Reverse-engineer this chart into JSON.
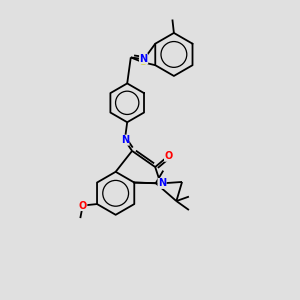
{
  "background_color": "#e0e0e0",
  "bond_color": "#000000",
  "S_color": "#cccc00",
  "N_color": "#0000ff",
  "O_color": "#ff0000",
  "figsize": [
    3.0,
    3.0
  ],
  "dpi": 100,
  "xlim": [
    0,
    10
  ],
  "ylim": [
    0,
    10
  ],
  "lw": 1.3
}
